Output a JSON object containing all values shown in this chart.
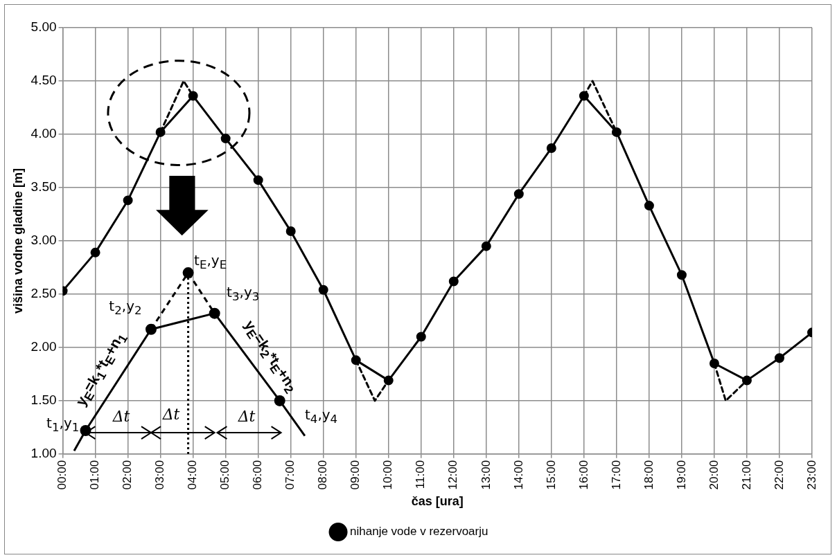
{
  "chart_data": {
    "type": "line",
    "xlabel": "čas [ura]",
    "ylabel": "višina vodne gladine [m]",
    "xlim": [
      0,
      23
    ],
    "xticks": [
      {
        "value": 0,
        "label": "00:00"
      },
      {
        "value": 1,
        "label": "01:00"
      },
      {
        "value": 2,
        "label": "02:00"
      },
      {
        "value": 3,
        "label": "03:00"
      },
      {
        "value": 4,
        "label": "04:00"
      },
      {
        "value": 5,
        "label": "05:00"
      },
      {
        "value": 6,
        "label": "06:00"
      },
      {
        "value": 7,
        "label": "07:00"
      },
      {
        "value": 8,
        "label": "08:00"
      },
      {
        "value": 9,
        "label": "09:00"
      },
      {
        "value": 10,
        "label": "10:00"
      },
      {
        "value": 11,
        "label": "11:00"
      },
      {
        "value": 12,
        "label": "12:00"
      },
      {
        "value": 13,
        "label": "13:00"
      },
      {
        "value": 14,
        "label": "14:00"
      },
      {
        "value": 15,
        "label": "15:00"
      },
      {
        "value": 16,
        "label": "16:00"
      },
      {
        "value": 17,
        "label": "17:00"
      },
      {
        "value": 18,
        "label": "18:00"
      },
      {
        "value": 19,
        "label": "19:00"
      },
      {
        "value": 20,
        "label": "20:00"
      },
      {
        "value": 21,
        "label": "21:00"
      },
      {
        "value": 22,
        "label": "22:00"
      },
      {
        "value": 23,
        "label": "23:00"
      }
    ],
    "ylim": [
      1,
      5
    ],
    "yticks": [
      {
        "value": 1,
        "label": "1.00"
      },
      {
        "value": 1.5,
        "label": "1.50"
      },
      {
        "value": 2,
        "label": "2.00"
      },
      {
        "value": 2.5,
        "label": "2.50"
      },
      {
        "value": 3,
        "label": "3.00"
      },
      {
        "value": 3.5,
        "label": "3.50"
      },
      {
        "value": 4,
        "label": "4.00"
      },
      {
        "value": 4.5,
        "label": "4.50"
      },
      {
        "value": 5,
        "label": "5.00"
      }
    ],
    "grid": true,
    "legend": "bottom",
    "series": [
      {
        "name": "nihanje vode v rezervoarju",
        "color": "#000000",
        "marker": "circle",
        "line_style": "solid",
        "x": [
          0,
          1,
          2,
          3,
          4,
          5,
          6,
          7,
          8,
          9,
          10,
          11,
          12,
          13,
          14,
          15,
          16,
          17,
          18,
          19,
          20,
          21,
          22,
          23
        ],
        "values": [
          2.53,
          2.89,
          3.38,
          4.02,
          4.36,
          3.96,
          3.57,
          3.09,
          2.54,
          1.88,
          1.69,
          2.1,
          2.62,
          2.95,
          3.44,
          3.87,
          4.36,
          4.02,
          3.33,
          2.68,
          1.85,
          1.69,
          1.9,
          2.14
        ]
      },
      {
        "color": "#000000",
        "marker": "none",
        "line_style": "dashed",
        "x": [
          3,
          3.71,
          4
        ],
        "values": [
          4.02,
          4.5,
          4.36
        ]
      },
      {
        "color": "#000000",
        "marker": "none",
        "line_style": "dashed",
        "x": [
          9,
          9.58,
          10
        ],
        "values": [
          1.88,
          1.5,
          1.69
        ]
      },
      {
        "color": "#000000",
        "marker": "none",
        "line_style": "dashed",
        "x": [
          16,
          16.26,
          17
        ],
        "values": [
          4.36,
          4.5,
          4.02
        ]
      },
      {
        "color": "#000000",
        "marker": "none",
        "line_style": "dashed",
        "x": [
          20,
          20.35,
          21
        ],
        "values": [
          1.85,
          1.5,
          1.69
        ]
      }
    ],
    "annotations": [
      "t$_{E}$,y$_{E}$",
      "t$_{2}$,y$_{2}$",
      "t$_{3}$,y$_{3}$",
      "t$_{1}$,y$_{1}$",
      "t$_{4}$,y$_{4}$",
      "y$_{E}$=k$_{1}$*t$_{E}$+n$_{1}$",
      "y$_{E}$=k$_{2}$*t$_{E}$+n$_{2}$",
      "Δt",
      "Δt",
      "Δt"
    ]
  }
}
